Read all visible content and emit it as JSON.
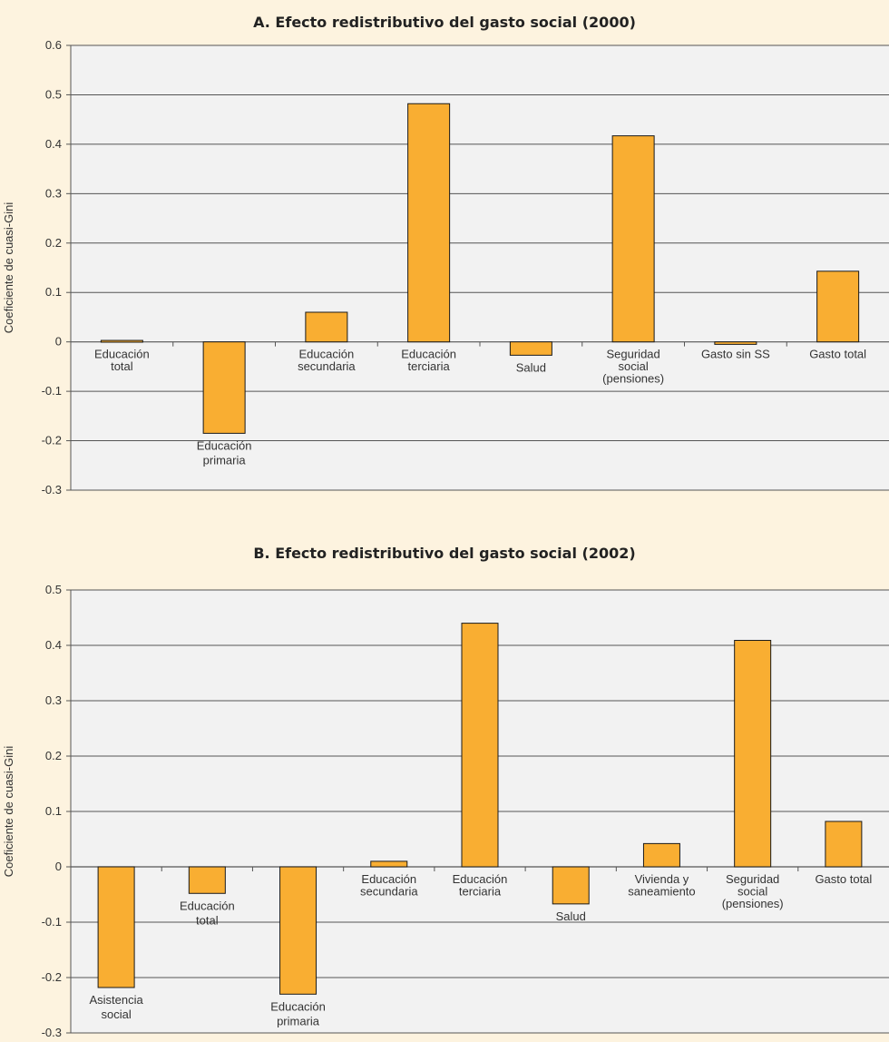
{
  "colors": {
    "background": "#fdf3df",
    "plot_bg": "#f2f2f2",
    "bar": "#f9ae32",
    "bar_stroke": "#1a1a1a",
    "grid": "#555555"
  },
  "chart_data": [
    {
      "type": "bar",
      "title": "A. Efecto redistributivo del gasto social (2000)",
      "ylabel": "Coeficiente de cuasi-Gini",
      "ylim": [
        -0.3,
        0.6
      ],
      "yticks": [
        "0.6",
        "0.5",
        "0.4",
        "0.3",
        "0.2",
        "0.1",
        "0",
        "-0.1",
        "-0.2",
        "-0.3"
      ],
      "grid": true,
      "categories": [
        [
          "Educación",
          "total"
        ],
        [
          "Educación",
          "primaria"
        ],
        [
          "Educación",
          "secundaria"
        ],
        [
          "Educación",
          "terciaria"
        ],
        [
          "Salud"
        ],
        [
          "Seguridad",
          "social",
          "(pensiones)"
        ],
        [
          "Gasto sin SS"
        ],
        [
          "Gasto total"
        ]
      ],
      "values": [
        0.003,
        -0.185,
        0.06,
        0.482,
        -0.027,
        0.417,
        -0.005,
        0.143
      ]
    },
    {
      "type": "bar",
      "title": "B. Efecto redistributivo del gasto social (2002)",
      "ylabel": "Coeficiente de cuasi-Gini",
      "ylim": [
        -0.3,
        0.5
      ],
      "yticks": [
        "0.5",
        "0.4",
        "0.3",
        "0.2",
        "0.1",
        "0",
        "-0.1",
        "-0.2",
        "-0.3"
      ],
      "grid": true,
      "categories": [
        [
          "Asistencia",
          "social"
        ],
        [
          "Educación",
          "total"
        ],
        [
          "Educación",
          "primaria"
        ],
        [
          "Educación",
          "secundaria"
        ],
        [
          "Educación",
          "terciaria"
        ],
        [
          "Salud"
        ],
        [
          "Vivienda y",
          "saneamiento"
        ],
        [
          "Seguridad",
          "social",
          "(pensiones)"
        ],
        [
          "Gasto total"
        ]
      ],
      "values": [
        -0.218,
        -0.048,
        -0.23,
        0.01,
        0.44,
        -0.067,
        0.042,
        0.409,
        0.082
      ]
    }
  ]
}
